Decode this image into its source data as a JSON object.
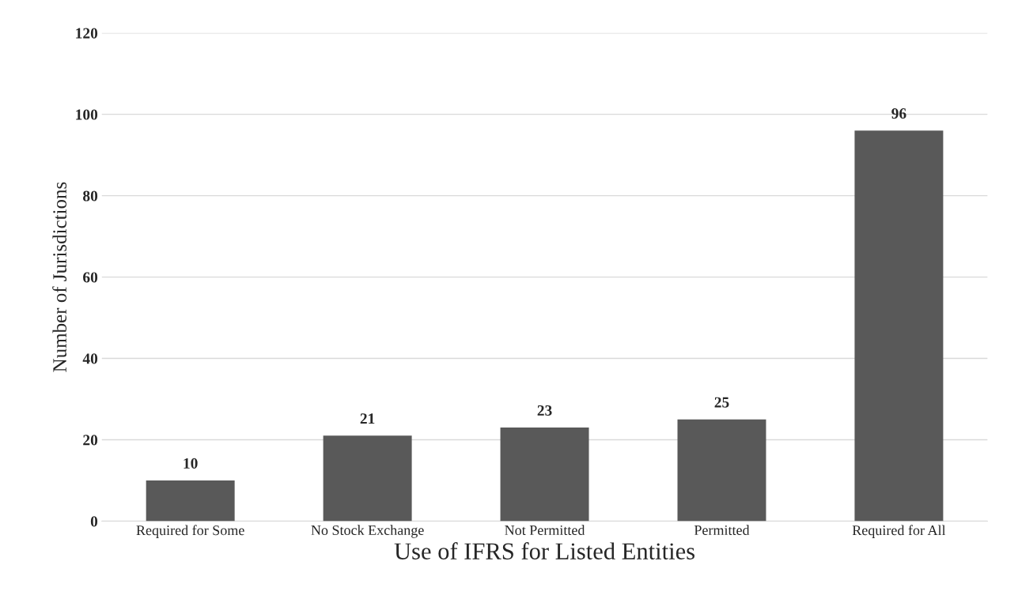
{
  "chart_data": {
    "type": "bar",
    "xlabel": "Use of IFRS for Listed Entities",
    "ylabel": "Number of Jurisdictions",
    "categories": [
      "Required for Some",
      "No Stock Exchange",
      "Not Permitted",
      "Permitted",
      "Required for All"
    ],
    "values": [
      10,
      21,
      23,
      25,
      96
    ],
    "colors": [
      "#595959",
      "#595959",
      "#595959",
      "#595959",
      "#595959"
    ],
    "ylim": [
      0,
      120
    ],
    "yticks": [
      0,
      20,
      40,
      60,
      80,
      100,
      120
    ],
    "grid": "y",
    "data_labels": true
  }
}
